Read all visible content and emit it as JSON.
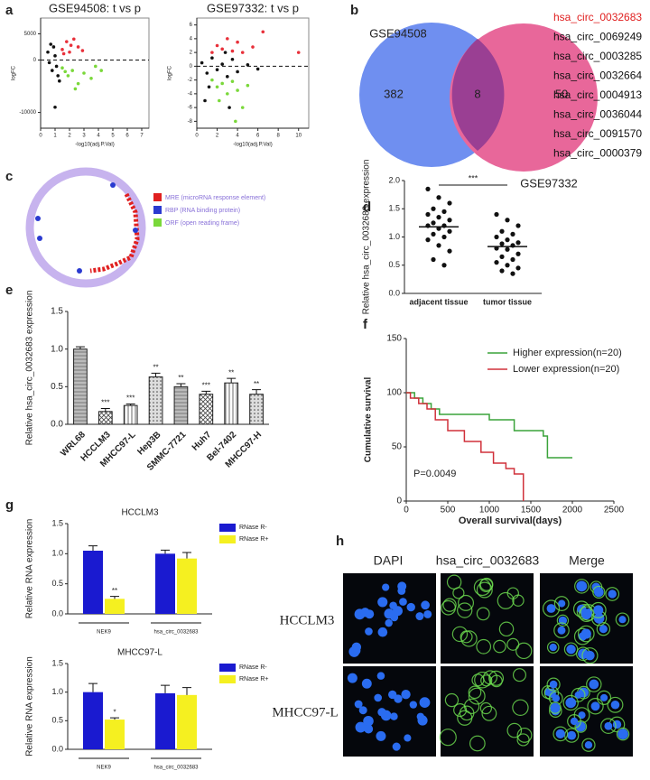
{
  "panel_labels": [
    "a",
    "b",
    "c",
    "d",
    "e",
    "f",
    "g",
    "h"
  ],
  "venn": {
    "left_label": "GSE94508",
    "right_label": "GSE97332",
    "left_only": 382,
    "overlap": 8,
    "right_only": 50
  },
  "circ_list": [
    "hsa_circ_0032683",
    "hsa_circ_0069249",
    "hsa_circ_0003285",
    "hsa_circ_0032664",
    "hsa_circ_0004913",
    "hsa_circ_0036044",
    "hsa_circ_0091570",
    "hsa_circ_0000379"
  ],
  "circos_legend": [
    "MRE (microRNA response element)",
    "RBP (RNA binding protein)",
    "ORF (open reading frame)"
  ],
  "microscopy": {
    "columns": [
      "DAPI",
      "hsa_circ_0032683",
      "Merge"
    ],
    "rows": [
      "HCCLM3",
      "MHCC97-L"
    ]
  },
  "chart_data": [
    {
      "type": "scatter",
      "title": "GSE94508: t vs p",
      "x_label": "-log10(adj.P.Val)",
      "y_label": "logFC",
      "xlim": [
        0,
        7.5
      ],
      "xticks": [
        0,
        1,
        2,
        3,
        4,
        5,
        6,
        7
      ],
      "ylim": [
        -13000,
        8000
      ],
      "yticks": [
        5000,
        0,
        -10000
      ],
      "hline": 0,
      "series": [
        {
          "color": "#111111",
          "x": [
            0.5,
            0.8,
            1.0,
            1.2,
            0.9,
            0.6,
            1.1,
            0.7,
            1.3,
            1.0
          ],
          "values": [
            1500,
            -2000,
            800,
            -3000,
            2500,
            -500,
            -1200,
            3000,
            -4000,
            -9000
          ]
        },
        {
          "color": "#e8303a",
          "x": [
            1.5,
            1.8,
            2.0,
            2.3,
            2.6,
            1.6,
            2.1,
            2.9
          ],
          "values": [
            2000,
            3500,
            1500,
            4000,
            2500,
            1200,
            2800,
            1800
          ]
        },
        {
          "color": "#7ad83a",
          "x": [
            1.5,
            1.9,
            2.2,
            2.6,
            3.0,
            3.5,
            4.2,
            2.4,
            1.7,
            3.8
          ],
          "values": [
            -1500,
            -3000,
            -2000,
            -4500,
            -2500,
            -3500,
            -2000,
            -5500,
            -2200,
            -1200
          ]
        }
      ]
    },
    {
      "type": "scatter",
      "title": "GSE97332: t vs p",
      "x_label": "-log10(adj.P.Val)",
      "y_label": "logFC",
      "xlim": [
        0,
        11
      ],
      "xticks": [
        0,
        2,
        4,
        6,
        8,
        10
      ],
      "ylim": [
        -9,
        7
      ],
      "yticks": [
        6,
        4,
        2,
        0,
        -2,
        -4,
        -6,
        -8
      ],
      "hline": 0,
      "series": [
        {
          "color": "#111111",
          "x": [
            0.5,
            1.0,
            1.5,
            2.0,
            2.5,
            3,
            3.5,
            4,
            1.2,
            2.8,
            0.8,
            5,
            6,
            3.2
          ],
          "values": [
            0.5,
            -1,
            1.2,
            -0.5,
            0.3,
            -1.5,
            1,
            -0.8,
            -3,
            2,
            -5,
            0.2,
            -0.4,
            -6
          ]
        },
        {
          "color": "#e8303a",
          "x": [
            1.5,
            2,
            2.5,
            3,
            3.5,
            4,
            4.5,
            5.5,
            6.5,
            10
          ],
          "values": [
            2,
            3,
            2.5,
            4,
            2.2,
            3.5,
            2,
            2.8,
            5,
            2
          ]
        },
        {
          "color": "#7ad83a",
          "x": [
            1.5,
            2,
            2.5,
            3,
            3.5,
            4,
            4.5,
            5,
            2.2,
            3.8
          ],
          "values": [
            -2,
            -3,
            -2.5,
            -4,
            -2.2,
            -3.5,
            -6,
            -2.8,
            -5,
            -8
          ]
        }
      ]
    },
    {
      "type": "strip",
      "y_label": "Relative hsa_circ_0032683 expression",
      "categories": [
        "adjacent tissue",
        "tumor tissue"
      ],
      "ylim": [
        0,
        2.0
      ],
      "yticks": [
        {
          "value": 0,
          "label": "0.0"
        },
        {
          "value": 0.5,
          "label": "0.5"
        },
        {
          "value": 1,
          "label": "1.0"
        },
        {
          "value": 1.5,
          "label": "1.5"
        },
        {
          "value": 2,
          "label": "2.0"
        }
      ],
      "values": [
        [
          1.85,
          1.7,
          1.6,
          1.5,
          1.45,
          1.4,
          1.35,
          1.3,
          1.25,
          1.2,
          1.2,
          1.15,
          1.1,
          1.05,
          1.0,
          0.95,
          0.85,
          0.75,
          0.6,
          0.5
        ],
        [
          1.4,
          1.3,
          1.2,
          1.1,
          1.05,
          1.0,
          0.95,
          0.9,
          0.88,
          0.85,
          0.8,
          0.78,
          0.7,
          0.65,
          0.6,
          0.55,
          0.5,
          0.45,
          0.4,
          0.35
        ]
      ],
      "means": [
        1.18,
        0.83
      ],
      "annotation": "***",
      "color": "#111111"
    },
    {
      "type": "bar",
      "y_label": "Relative hsa_circ_0032683 expression",
      "categories": [
        "WRL68",
        "HCCLM3",
        "MHCC97-L",
        "Hep3B",
        "SMMC-7721",
        "Huh7",
        "Bel-7402",
        "MHCC97-H"
      ],
      "values": [
        1.0,
        0.17,
        0.25,
        0.63,
        0.5,
        0.4,
        0.55,
        0.4
      ],
      "errors": [
        0.03,
        0.04,
        0.02,
        0.05,
        0.04,
        0.04,
        0.06,
        0.06
      ],
      "annotations": [
        null,
        "***",
        "***",
        "**",
        "**",
        "***",
        "**",
        "**"
      ],
      "ylim": [
        0,
        1.5
      ],
      "yticks": [
        {
          "value": 0,
          "label": "0.0"
        },
        {
          "value": 0.5,
          "label": "0.5"
        },
        {
          "value": 1,
          "label": "1.0"
        },
        {
          "value": 1.5,
          "label": "1.5"
        }
      ],
      "color": "#555555"
    },
    {
      "type": "line",
      "y_label": "Cumulative survival",
      "x_label": "Overall survival(days)",
      "xlim": [
        0,
        2500
      ],
      "xticks": [
        0,
        500,
        1000,
        1500,
        2000,
        2500
      ],
      "ylim": [
        0,
        150
      ],
      "yticks": [
        0,
        50,
        100,
        150
      ],
      "legend": "upper right",
      "annotation": "P=0.0049",
      "series": [
        {
          "name": "Higher expression(n=20)",
          "color": "#3aa33a",
          "x": [
            0,
            100,
            200,
            300,
            400,
            600,
            1000,
            1300,
            1650,
            1700,
            2000
          ],
          "values": [
            100,
            95,
            90,
            85,
            80,
            80,
            75,
            65,
            60,
            40,
            40
          ]
        },
        {
          "name": "Lower expression(n=20)",
          "color": "#d0303a",
          "x": [
            0,
            50,
            150,
            250,
            350,
            500,
            700,
            900,
            1050,
            1200,
            1300,
            1400,
            1410
          ],
          "values": [
            100,
            95,
            90,
            85,
            75,
            65,
            55,
            45,
            35,
            30,
            25,
            25,
            0
          ]
        }
      ]
    },
    {
      "type": "bar",
      "title": "HCCLM3",
      "y_label": "Relative RNA expression",
      "categories": [
        "NEK9",
        "hsa_circ_0032683"
      ],
      "ylim": [
        0,
        1.5
      ],
      "yticks": [
        {
          "value": 0,
          "label": "0.0"
        },
        {
          "value": 0.5,
          "label": "0.5"
        },
        {
          "value": 1,
          "label": "1.0"
        },
        {
          "value": 1.5,
          "label": "1.5"
        }
      ],
      "legend": "right",
      "series": [
        {
          "name": "RNase R-",
          "color": "#1a1ad0",
          "values": [
            1.05,
            1.0
          ],
          "errors": [
            0.08,
            0.06
          ],
          "annotations": [
            null,
            null
          ]
        },
        {
          "name": "RNase R+",
          "color": "#f5f020",
          "values": [
            0.25,
            0.92
          ],
          "errors": [
            0.04,
            0.1
          ],
          "annotations": [
            "**",
            null
          ]
        }
      ]
    },
    {
      "type": "bar",
      "title": "MHCC97-L",
      "y_label": "Relative RNA expression",
      "categories": [
        "NEK9",
        "hsa_circ_0032683"
      ],
      "ylim": [
        0,
        1.5
      ],
      "yticks": [
        {
          "value": 0,
          "label": "0.0"
        },
        {
          "value": 0.5,
          "label": "0.5"
        },
        {
          "value": 1,
          "label": "1.0"
        },
        {
          "value": 1.5,
          "label": "1.5"
        }
      ],
      "legend": "right",
      "series": [
        {
          "name": "RNase R-",
          "color": "#1a1ad0",
          "values": [
            1.0,
            0.98
          ],
          "errors": [
            0.15,
            0.14
          ],
          "annotations": [
            null,
            null
          ]
        },
        {
          "name": "RNase R+",
          "color": "#f5f020",
          "values": [
            0.52,
            0.95
          ],
          "errors": [
            0.03,
            0.13
          ],
          "annotations": [
            "*",
            null
          ]
        }
      ]
    }
  ]
}
